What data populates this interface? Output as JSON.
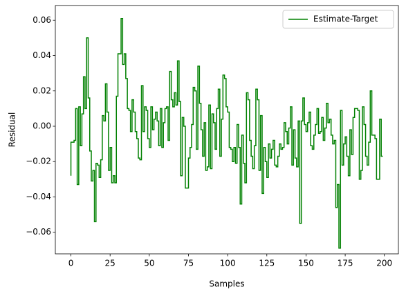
{
  "chart_data": {
    "type": "step",
    "xlabel": "Samples",
    "ylabel": "Residual",
    "legend": "upper right",
    "xlim": [
      -9.95,
      208.95
    ],
    "ylim": [
      -0.0722,
      0.0683
    ],
    "xticks": [
      0,
      25,
      50,
      75,
      100,
      125,
      150,
      175,
      200
    ],
    "yticks": [
      {
        "value": -0.06,
        "label": "−0.06"
      },
      {
        "value": -0.04,
        "label": "−0.04"
      },
      {
        "value": -0.02,
        "label": "−0.02"
      },
      {
        "value": 0,
        "label": "0.00"
      },
      {
        "value": 0.02,
        "label": "0.02"
      },
      {
        "value": 0.04,
        "label": "0.04"
      },
      {
        "value": 0.06,
        "label": "0.06"
      }
    ],
    "series": [
      {
        "name": "Estimate-Target",
        "color": "#008000",
        "values": [
          -0.028,
          -0.009,
          -0.009,
          -0.008,
          0.01,
          -0.033,
          0.011,
          -0.011,
          0.007,
          0.028,
          0.01,
          0.05,
          0.016,
          -0.014,
          -0.031,
          -0.025,
          -0.054,
          -0.021,
          -0.022,
          -0.029,
          -0.019,
          0.006,
          0.003,
          0.024,
          0.008,
          -0.025,
          -0.012,
          -0.032,
          -0.028,
          -0.032,
          0.017,
          0.041,
          0.041,
          0.061,
          0.035,
          0.041,
          0.027,
          0.01,
          0.009,
          -0.003,
          0.015,
          0.008,
          -0.003,
          -0.007,
          -0.018,
          -0.019,
          0.023,
          -0.003,
          0.011,
          0.009,
          -0.007,
          -0.012,
          0.011,
          -0.002,
          0.004,
          0.008,
          0.003,
          -0.011,
          0.01,
          -0.012,
          0.002,
          0.01,
          0.011,
          -0.008,
          0.031,
          0.015,
          0.011,
          0.019,
          0.012,
          0.037,
          0.014,
          -0.028,
          0.005,
          0.0,
          -0.035,
          -0.035,
          -0.018,
          -0.012,
          0.001,
          0.022,
          0.02,
          -0.013,
          0.034,
          0.013,
          -0.002,
          -0.017,
          0.002,
          -0.025,
          -0.023,
          0.012,
          -0.024,
          0.007,
          0.002,
          -0.013,
          0.01,
          0.021,
          -0.017,
          0.004,
          0.029,
          0.027,
          0.011,
          0.008,
          -0.012,
          -0.013,
          -0.02,
          -0.012,
          -0.021,
          0.001,
          -0.012,
          -0.044,
          -0.005,
          -0.021,
          -0.032,
          0.019,
          0.015,
          -0.008,
          -0.017,
          -0.024,
          -0.011,
          0.021,
          0.015,
          -0.025,
          0.006,
          -0.038,
          -0.012,
          -0.02,
          -0.029,
          -0.01,
          -0.018,
          -0.013,
          -0.008,
          -0.022,
          -0.023,
          -0.017,
          -0.01,
          -0.013,
          -0.012,
          0.002,
          -0.003,
          -0.01,
          -0.001,
          0.011,
          -0.022,
          -0.002,
          -0.018,
          -0.023,
          0.003,
          -0.055,
          0.003,
          0.016,
          0.001,
          -0.003,
          0.002,
          0.008,
          -0.011,
          -0.013,
          -0.005,
          0.001,
          0.01,
          -0.004,
          -0.003,
          0.005,
          -0.008,
          -0.001,
          0.013,
          0.002,
          0.004,
          -0.005,
          -0.01,
          -0.008,
          -0.046,
          -0.033,
          -0.069,
          0.009,
          -0.022,
          -0.01,
          -0.006,
          -0.017,
          -0.028,
          -0.002,
          -0.016,
          0.005,
          0.01,
          0.01,
          0.009,
          -0.03,
          -0.025,
          0.011,
          0.001,
          -0.017,
          -0.022,
          -0.009,
          0.02,
          -0.005,
          -0.005,
          -0.007,
          -0.03,
          -0.03,
          0.004,
          -0.017
        ]
      }
    ]
  }
}
